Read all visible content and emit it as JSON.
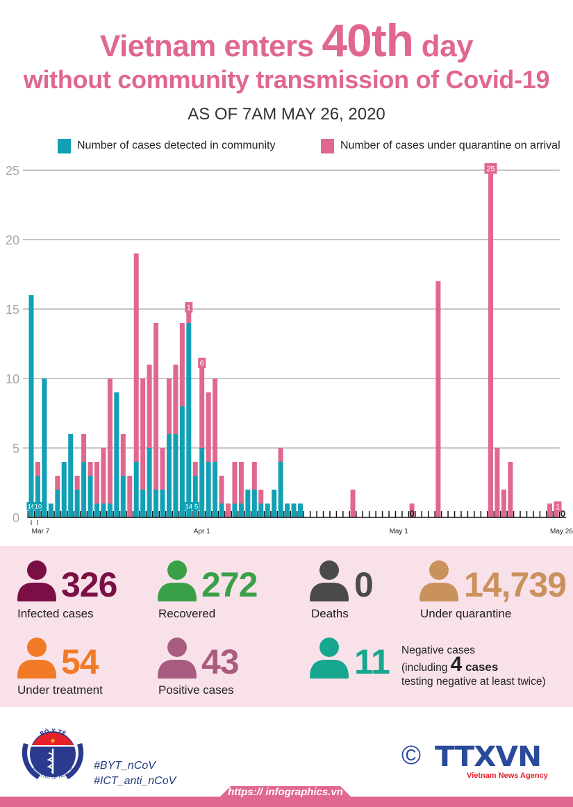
{
  "header": {
    "title_part1": "Vietnam enters ",
    "title_highlight": "40th",
    "title_part2": " day",
    "title_line2": "without community transmission of Covid-19",
    "subtitle": "AS OF 7AM MAY 26, 2020"
  },
  "colors": {
    "community": "#12a0b4",
    "quarantine": "#e0678d",
    "title": "#e0678d",
    "stats_bg": "#f9e1ea"
  },
  "chart_data": {
    "type": "bar",
    "stacked": true,
    "title": "",
    "xlabel": "",
    "ylabel": "",
    "ylim": [
      0,
      25
    ],
    "yticks": [
      "0",
      "5",
      "10",
      "15",
      "20",
      "25"
    ],
    "grid": true,
    "legend_placement": "top",
    "x_start": "Mar 6",
    "x_end": "May 26",
    "x_tick_labels": [
      {
        "index": 1,
        "label": "Mar 7"
      },
      {
        "index": 26,
        "label": "Apr 1"
      },
      {
        "index": 56,
        "label": "May 1"
      },
      {
        "index": 81,
        "label": "May 26"
      }
    ],
    "series": [
      {
        "name": "Number of cases detected in community",
        "color": "#12a0b4",
        "values": [
          16,
          3,
          10,
          1,
          2,
          4,
          6,
          2,
          4,
          3,
          1,
          1,
          1,
          9,
          3,
          0,
          4,
          2,
          5,
          2,
          2,
          6,
          6,
          8,
          14,
          3,
          5,
          4,
          4,
          1,
          0,
          1,
          1,
          2,
          2,
          1,
          1,
          2,
          4,
          1,
          1,
          1,
          0,
          0,
          0,
          0,
          0,
          0,
          0,
          0,
          0,
          0,
          0,
          0,
          0,
          0,
          0,
          0,
          0,
          0,
          0,
          0,
          0,
          0,
          0,
          0,
          0,
          0,
          0,
          0,
          0,
          0,
          0,
          0,
          0,
          0,
          0,
          0,
          0,
          0,
          0,
          0
        ]
      },
      {
        "name": "Number of cases under quarantine on arrival",
        "color": "#e0678d",
        "values": [
          0,
          1,
          0,
          0,
          1,
          0,
          0,
          1,
          2,
          1,
          3,
          4,
          9,
          0,
          3,
          3,
          15,
          8,
          6,
          12,
          3,
          4,
          5,
          6,
          1,
          1,
          6,
          5,
          6,
          2,
          1,
          3,
          3,
          0,
          2,
          1,
          0,
          0,
          1,
          0,
          0,
          0,
          0,
          0,
          0,
          0,
          0,
          0,
          0,
          2,
          0,
          0,
          0,
          0,
          0,
          0,
          0,
          0,
          1,
          0,
          0,
          0,
          17,
          0,
          0,
          0,
          0,
          0,
          0,
          0,
          25,
          5,
          2,
          4,
          0,
          0,
          0,
          0,
          0,
          1,
          1,
          0
        ]
      }
    ],
    "annotations": [
      {
        "index": 0,
        "series": "community",
        "label": "16"
      },
      {
        "index": 2,
        "series": "community",
        "label": "10"
      },
      {
        "index": 24,
        "series": "community",
        "label": "14"
      },
      {
        "index": 26,
        "series": "community",
        "label": "5"
      },
      {
        "index": 24,
        "series": "quarantine",
        "label": "1"
      },
      {
        "index": 26,
        "series": "quarantine",
        "label": "6"
      },
      {
        "index": 58,
        "series": "community",
        "label": "0"
      },
      {
        "index": 70,
        "series": "quarantine",
        "label": "25"
      },
      {
        "index": 80,
        "series": "quarantine",
        "label": "1"
      },
      {
        "index": 81,
        "series": "community",
        "label": "0"
      }
    ]
  },
  "stats": [
    {
      "id": "infected",
      "value": "326",
      "label": "Infected cases",
      "color": "#7a0f45"
    },
    {
      "id": "recovered",
      "value": "272",
      "label": "Recovered",
      "color": "#3aa048"
    },
    {
      "id": "deaths",
      "value": "0",
      "label": "Deaths",
      "color": "#4a4a4c"
    },
    {
      "id": "quarantine",
      "value": "14,739",
      "label": "Under quarantine",
      "color": "#c9925c"
    },
    {
      "id": "treatment",
      "value": "54",
      "label": "Under treatment",
      "color": "#f07a26"
    },
    {
      "id": "positive",
      "value": "43",
      "label": "Positive cases",
      "color": "#a85d80"
    },
    {
      "id": "negative",
      "value": "11",
      "label": "Negative cases",
      "color": "#16a78e"
    }
  ],
  "negative_note": {
    "line1": "Negative cases",
    "line2_prefix": "(including ",
    "line2_num": "4",
    "line2_suffix": " cases",
    "line3": "testing negative at least twice)"
  },
  "footer": {
    "logo_top": "BỘ Y TẾ",
    "logo_bottom": "MINISTRY OF HEALTH",
    "hashtag1": "#BYT_nCoV",
    "hashtag2": "#ICT_anti_nCoV",
    "copyright": "©",
    "agency_logo": "TTXVN",
    "agency_name": "Vietnam News Agency",
    "url": "https:// infographics.vn"
  }
}
